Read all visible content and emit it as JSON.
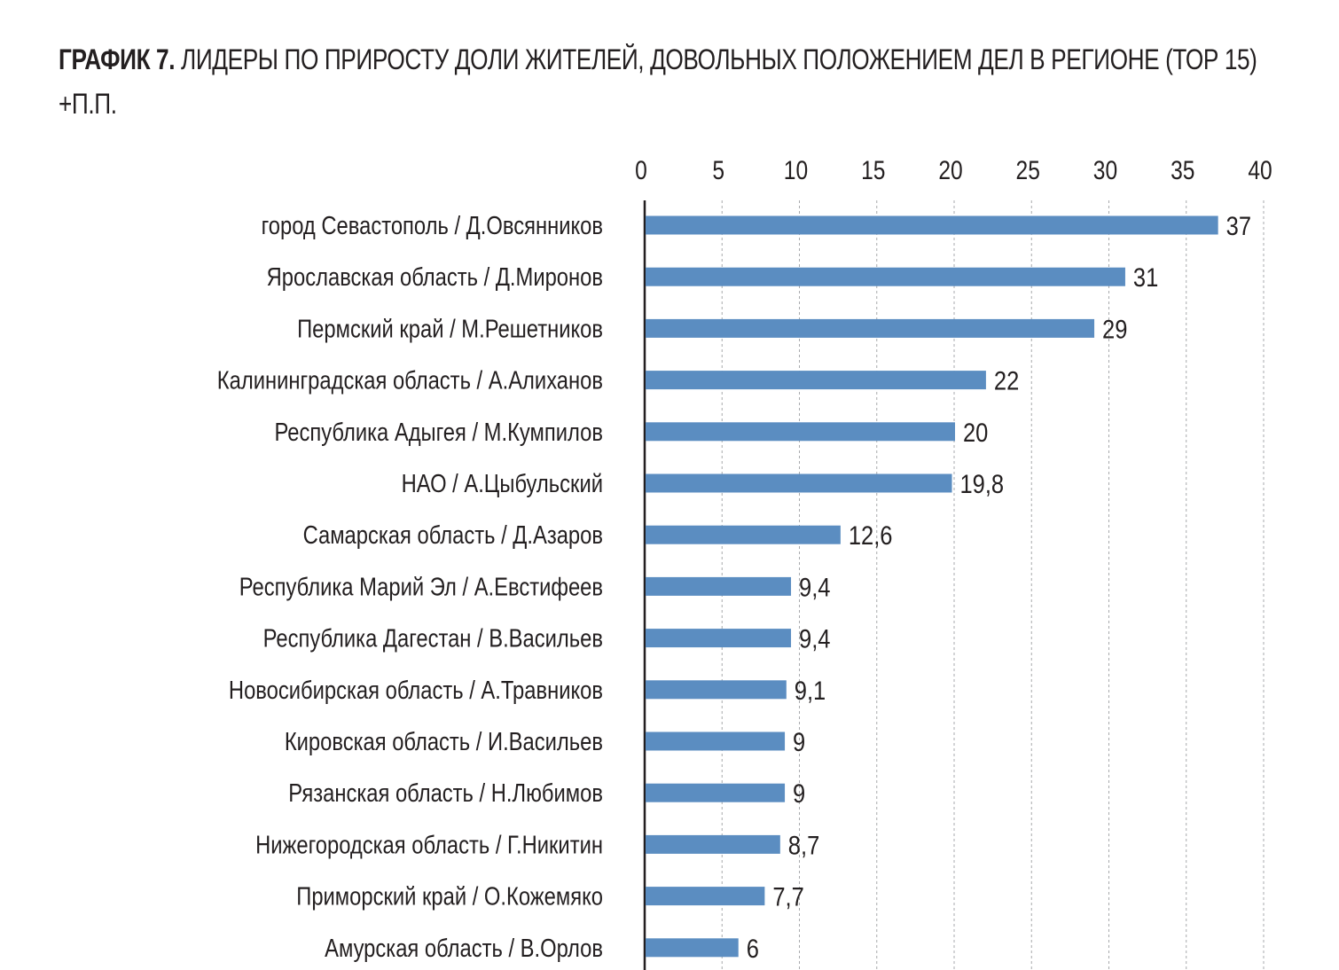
{
  "header": {
    "lead": "ГРАФИК 7.",
    "title_line1": "ЛИДЕРЫ ПО ПРИРОСТУ ДОЛИ ЖИТЕЛЕЙ, ДОВОЛЬНЫХ ПОЛОЖЕНИЕМ ДЕЛ В РЕГИОНЕ (ТОР 15)",
    "title_line2": "+П.П."
  },
  "chart_data": {
    "type": "bar",
    "orientation": "horizontal",
    "title": "ГРАФИК 7. ЛИДЕРЫ ПО ПРИРОСТУ ДОЛИ ЖИТЕЛЕЙ, ДОВОЛЬНЫХ ПОЛОЖЕНИЕМ ДЕЛ В РЕГИОНЕ (ТОР 15) +П.П.",
    "xlim": [
      0,
      40
    ],
    "ticks": [
      "0",
      "5",
      "10",
      "15",
      "20",
      "25",
      "30",
      "35",
      "40"
    ],
    "tick_values": [
      0,
      5,
      10,
      15,
      20,
      25,
      30,
      35,
      40
    ],
    "axis_position": "top",
    "grid": "vertical dashed",
    "bar_color": "#5b8dc1",
    "categories": [
      "город Севастополь / Д.Овсянников",
      "Ярославская область / Д.Миронов",
      "Пермский край / М.Решетников",
      "Калининградская область / А.Алиханов",
      "Республика Адыгея / М.Кумпилов",
      "НАО / А.Цыбульский",
      "Самарская область / Д.Азаров",
      "Республика Марий Эл / А.Евстифеев",
      "Республика Дагестан / В.Васильев",
      "Новосибирская область / А.Травников",
      "Кировская область / И.Васильев",
      "Рязанская область / Н.Любимов",
      "Нижегородская область / Г.Никитин",
      "Приморский край / О.Кожемяко",
      "Амурская область / В.Орлов"
    ],
    "values": [
      37,
      31,
      29,
      22,
      20,
      19.8,
      12.6,
      9.4,
      9.4,
      9.1,
      9,
      9,
      8.7,
      7.7,
      6
    ],
    "value_labels": [
      "37",
      "31",
      "29",
      "22",
      "20",
      "19,8",
      "12,6",
      "9,4",
      "9,4",
      "9,1",
      "9",
      "9",
      "8,7",
      "7,7",
      "6"
    ]
  }
}
